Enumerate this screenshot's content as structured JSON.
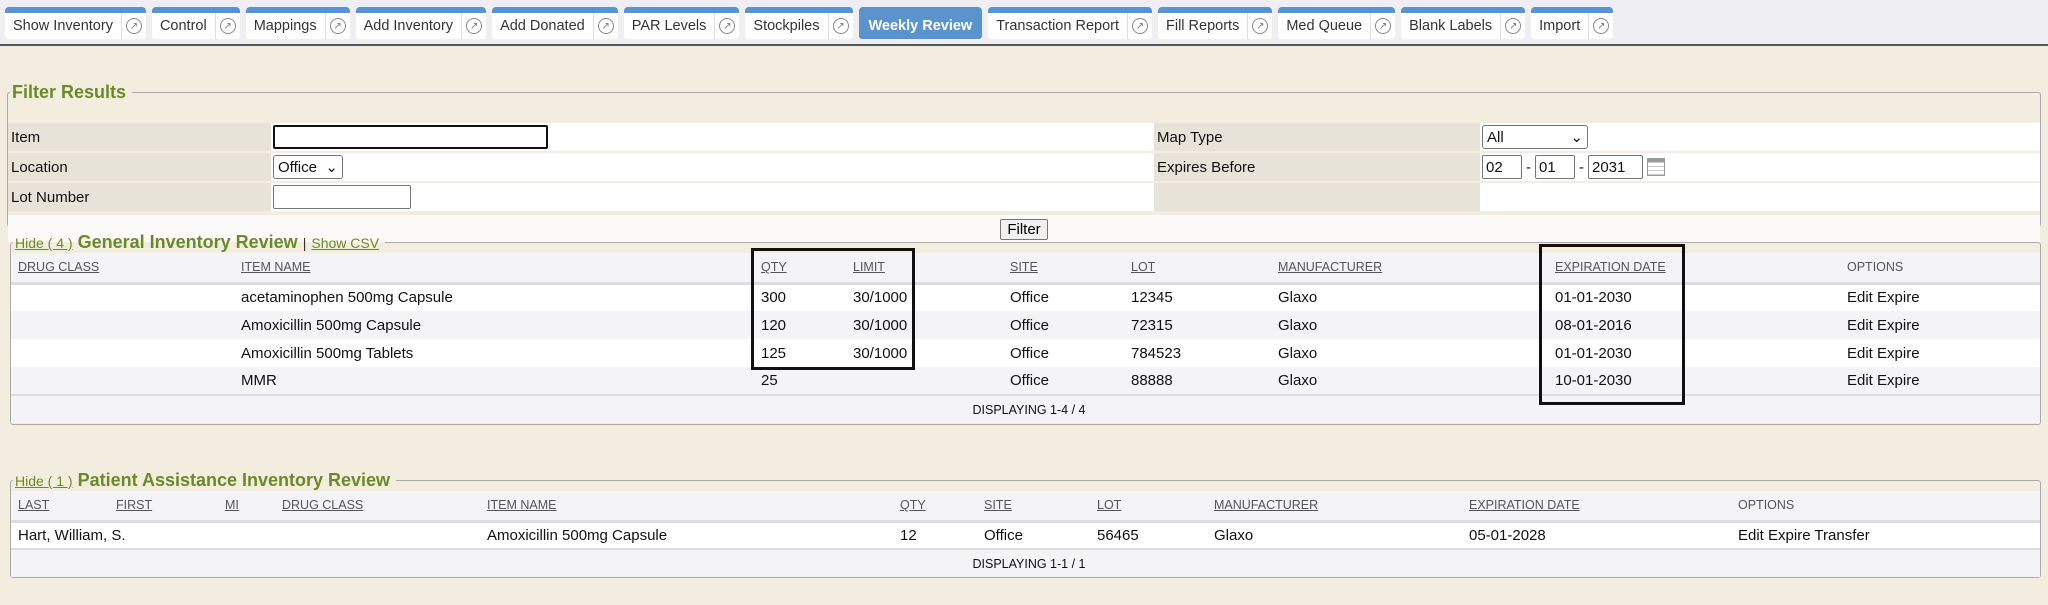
{
  "tabs": [
    {
      "label": "Show Inventory",
      "active": false
    },
    {
      "label": "Control",
      "active": false
    },
    {
      "label": "Mappings",
      "active": false
    },
    {
      "label": "Add Inventory",
      "active": false
    },
    {
      "label": "Add Donated",
      "active": false
    },
    {
      "label": "PAR Levels",
      "active": false
    },
    {
      "label": "Stockpiles",
      "active": false
    },
    {
      "label": "Weekly Review",
      "active": true
    },
    {
      "label": "Transaction Report",
      "active": false
    },
    {
      "label": "Fill Reports",
      "active": false
    },
    {
      "label": "Med Queue",
      "active": false
    },
    {
      "label": "Blank Labels",
      "active": false
    },
    {
      "label": "Import",
      "active": false
    }
  ],
  "filter": {
    "legend": "Filter Results",
    "item_label": "Item",
    "item_value": "",
    "location_label": "Location",
    "location_value": "Office",
    "lot_label": "Lot Number",
    "lot_value": "",
    "map_type_label": "Map Type",
    "map_type_value": "All",
    "expires_label": "Expires Before",
    "exp_month": "02",
    "exp_day": "01",
    "exp_year": "2031",
    "filter_button": "Filter"
  },
  "general": {
    "hide": "Hide ( 4 )",
    "title": "General Inventory Review",
    "sep": "|",
    "csv": "Show CSV",
    "columns": [
      "DRUG CLASS",
      "ITEM NAME",
      "QTY",
      "LIMIT",
      "SITE",
      "LOT",
      "MANUFACTURER",
      "EXPIRATION DATE",
      "OPTIONS"
    ],
    "rows": [
      [
        "",
        "acetaminophen 500mg Capsule",
        "300",
        "30/1000",
        "Office",
        "12345",
        "Glaxo",
        "01-01-2030",
        "Edit Expire"
      ],
      [
        "",
        "Amoxicillin 500mg Capsule",
        "120",
        "30/1000",
        "Office",
        "72315",
        "Glaxo",
        "08-01-2016",
        "Edit Expire"
      ],
      [
        "",
        "Amoxicillin 500mg Tablets",
        "125",
        "30/1000",
        "Office",
        "784523",
        "Glaxo",
        "01-01-2030",
        "Edit Expire"
      ],
      [
        "",
        "MMR",
        "25",
        "",
        "Office",
        "88888",
        "Glaxo",
        "10-01-2030",
        "Edit Expire"
      ]
    ],
    "footer": "DISPLAYING 1-4 / 4"
  },
  "patient": {
    "hide": "Hide ( 1 )",
    "title": "Patient Assistance Inventory Review",
    "columns": [
      "LAST",
      "FIRST",
      "MI",
      "DRUG CLASS",
      "ITEM NAME",
      "QTY",
      "SITE",
      "LOT",
      "MANUFACTURER",
      "EXPIRATION DATE",
      "OPTIONS"
    ],
    "rows": [
      [
        "Hart, William, S.",
        "",
        "",
        "",
        "Amoxicillin 500mg Capsule",
        "12",
        "Office",
        "56465",
        "Glaxo",
        "05-01-2028",
        "Edit Expire Transfer"
      ]
    ],
    "footer": "DISPLAYING 1-1 / 1"
  },
  "colors": {
    "tab_accent": "#5b93cf",
    "legend_green": "#6a8a2a",
    "background": "#f3ede0"
  }
}
